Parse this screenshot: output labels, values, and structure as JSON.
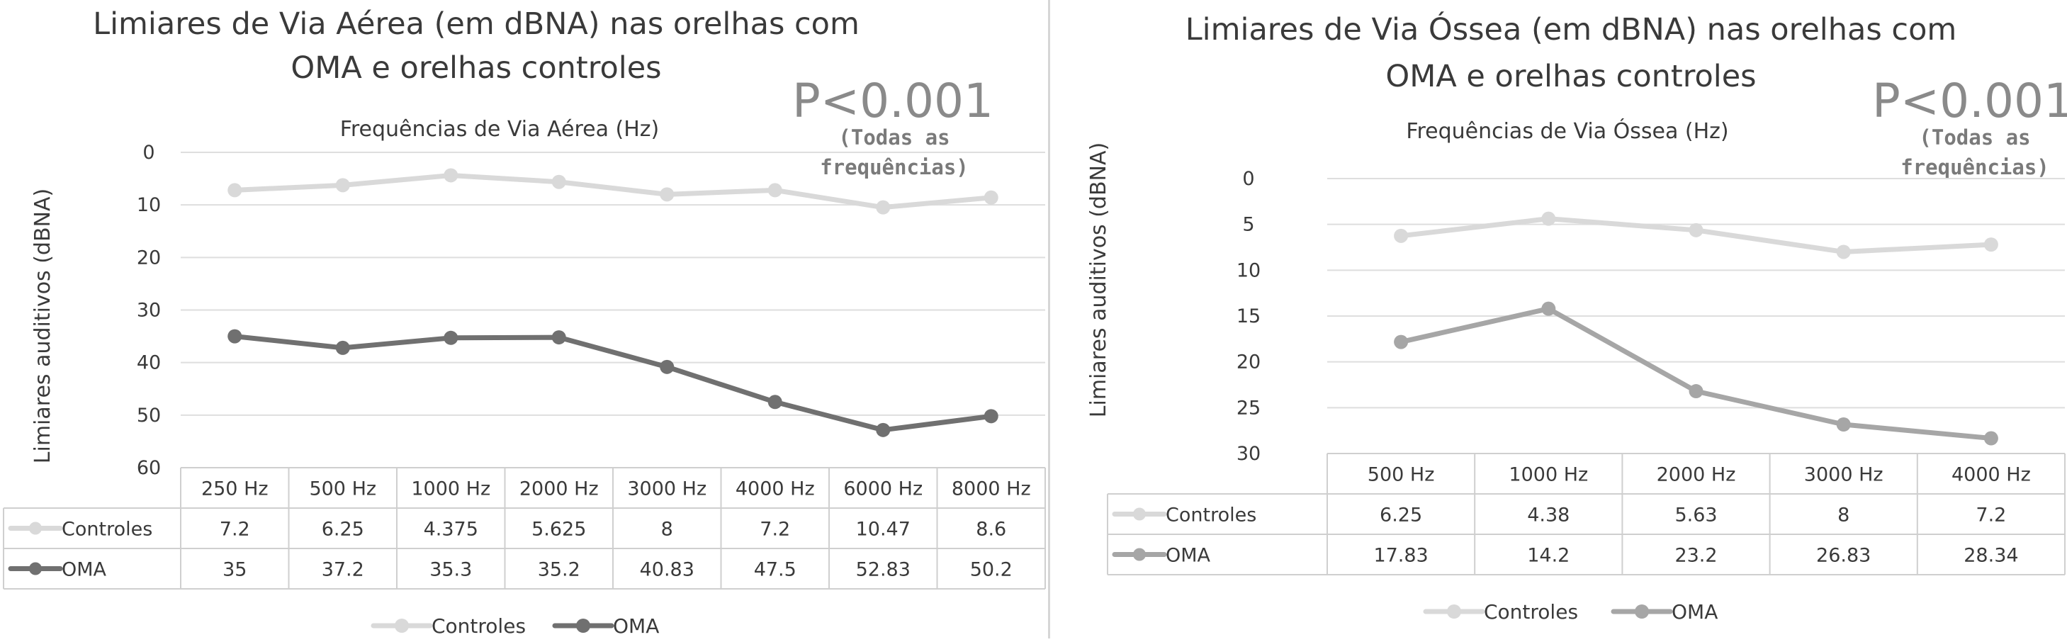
{
  "chart_data": [
    {
      "type": "line",
      "title": "Limiares de Via Aérea (em dBNA) nas orelhas com OMA e orelhas controles",
      "subtitle": "Frequências de Via Aérea (Hz)",
      "annotation": "P<0.001",
      "annotation_note": "(Todas as frequências)",
      "ylabel": "Limiares auditivos (dBNA)",
      "ylim": [
        0,
        60
      ],
      "y_inverted": true,
      "yticks": [
        0,
        10,
        20,
        30,
        40,
        50,
        60
      ],
      "grid": true,
      "legend_position": "bottom",
      "data_table": true,
      "categories": [
        "250 Hz",
        "500 Hz",
        "1000 Hz",
        "2000 Hz",
        "3000 Hz",
        "4000 Hz",
        "6000 Hz",
        "8000 Hz"
      ],
      "series": [
        {
          "name": "Controles",
          "color": "#d9d9d9",
          "values": [
            7.2,
            6.25,
            4.375,
            5.625,
            8,
            7.2,
            10.47,
            8.6
          ],
          "labels": [
            "7.2",
            "6.25",
            "4.375",
            "5.625",
            "8",
            "7.2",
            "10.47",
            "8.6"
          ]
        },
        {
          "name": "OMA",
          "color": "#707070",
          "values": [
            35,
            37.2,
            35.3,
            35.2,
            40.83,
            47.5,
            52.83,
            50.2
          ],
          "labels": [
            "35",
            "37.2",
            "35.3",
            "35.2",
            "40.83",
            "47.5",
            "52.83",
            "50.2"
          ]
        }
      ]
    },
    {
      "type": "line",
      "title": "Limiares de Via Óssea (em dBNA) nas orelhas com OMA e orelhas controles",
      "subtitle": "Frequências de Via Óssea (Hz)",
      "annotation": "P<0.001",
      "annotation_note": "(Todas as frequências)",
      "ylabel": "Limiares auditivos (dBNA)",
      "ylim": [
        0,
        30
      ],
      "y_inverted": true,
      "yticks": [
        0,
        5,
        10,
        15,
        20,
        25,
        30
      ],
      "grid": true,
      "legend_position": "bottom",
      "data_table": true,
      "categories": [
        "500 Hz",
        "1000 Hz",
        "2000 Hz",
        "3000 Hz",
        "4000 Hz"
      ],
      "series": [
        {
          "name": "Controles",
          "color": "#d9d9d9",
          "values": [
            6.25,
            4.38,
            5.63,
            8,
            7.2
          ],
          "labels": [
            "6.25",
            "4.38",
            "5.63",
            "8",
            "7.2"
          ]
        },
        {
          "name": "OMA",
          "color": "#a6a6a6",
          "values": [
            17.83,
            14.2,
            23.2,
            26.83,
            28.34
          ],
          "labels": [
            "17.83",
            "14.2",
            "23.2",
            "26.83",
            "28.34"
          ]
        }
      ]
    }
  ]
}
